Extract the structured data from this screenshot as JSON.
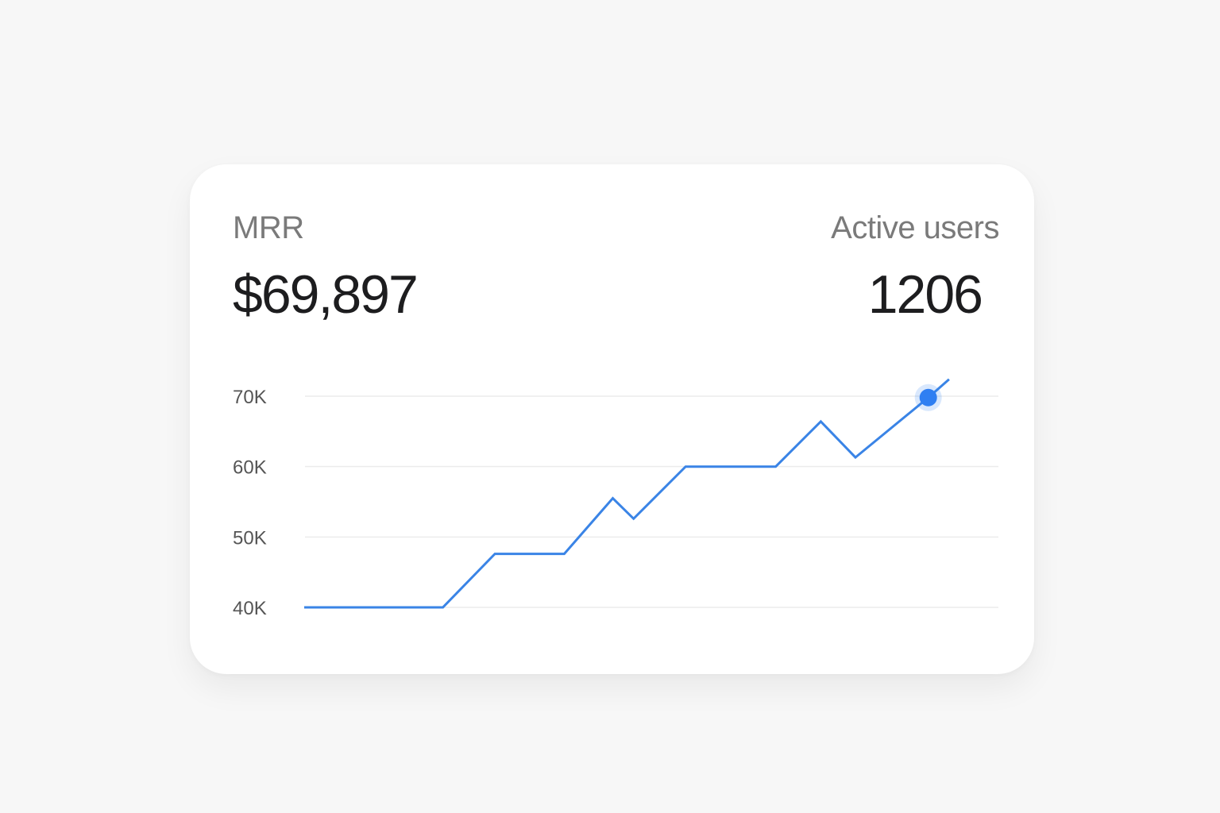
{
  "metrics": {
    "mrr_label": "MRR",
    "mrr_value": "$69,897",
    "users_label": "Active users",
    "users_value": "1206"
  },
  "colors": {
    "line": "#3a84e6",
    "marker": "#2f7ff2",
    "grid": "#ececec"
  },
  "chart_data": {
    "type": "line",
    "title": "",
    "xlabel": "",
    "ylabel": "",
    "ylim": [
      40000,
      70000
    ],
    "yticks": [
      {
        "value": 70000,
        "label": "70K"
      },
      {
        "value": 60000,
        "label": "60K"
      },
      {
        "value": 50000,
        "label": "50K"
      },
      {
        "value": 40000,
        "label": "40K"
      }
    ],
    "grid": true,
    "x": [
      0,
      2,
      2.75,
      3.75,
      4.45,
      4.75,
      5.5,
      6.8,
      7.45,
      7.95,
      9.0,
      9.3
    ],
    "values": [
      40000,
      40000,
      47600,
      47600,
      55500,
      52600,
      60000,
      60000,
      66400,
      61300,
      69800,
      72400
    ],
    "highlight": {
      "x": 9.0,
      "value": 69800
    }
  }
}
